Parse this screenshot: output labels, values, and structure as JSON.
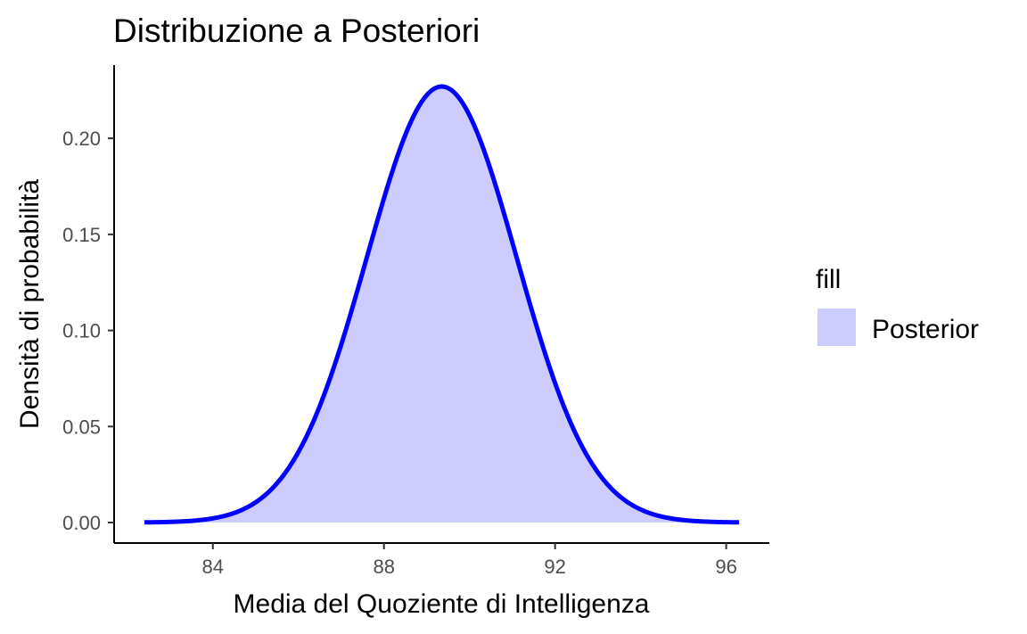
{
  "chart_data": {
    "type": "area",
    "title": "Distribuzione a Posteriori",
    "xlabel": "Media del Quoziente di Intelligenza",
    "ylabel": "Densità di probabilità",
    "xlim": [
      82.4,
      96.3
    ],
    "ylim": [
      0,
      0.227
    ],
    "x_ticks": [
      84,
      88,
      92,
      96
    ],
    "y_ticks": [
      0.0,
      0.05,
      0.1,
      0.15,
      0.2
    ],
    "x_tick_labels": [
      "84",
      "88",
      "92",
      "96"
    ],
    "y_tick_labels": [
      "0.00",
      "0.05",
      "0.10",
      "0.15",
      "0.20"
    ],
    "grid": false,
    "legend_position": "right",
    "legend_title": "fill",
    "series": [
      {
        "name": "Posterior",
        "distribution": "normal",
        "mean": 89.35,
        "sd": 1.755,
        "peak_density": 0.227,
        "line_color": "#0000ff",
        "fill_color": "#ccccff"
      }
    ]
  }
}
